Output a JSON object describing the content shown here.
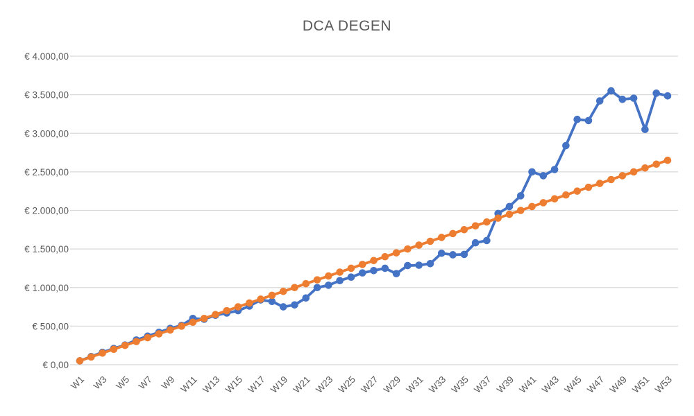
{
  "chart_data": {
    "type": "line",
    "title": "DCA DEGEN",
    "legend": "none",
    "grid": "horizontal",
    "ylim": [
      0,
      4000
    ],
    "y_ticks": [
      {
        "value": 0,
        "label": "€ 0,00"
      },
      {
        "value": 500,
        "label": "€ 500,00"
      },
      {
        "value": 1000,
        "label": "€ 1.000,00"
      },
      {
        "value": 1500,
        "label": "€ 1.500,00"
      },
      {
        "value": 2000,
        "label": "€ 2.000,00"
      },
      {
        "value": 2500,
        "label": "€ 2.500,00"
      },
      {
        "value": 3000,
        "label": "€ 3.000,00"
      },
      {
        "value": 3500,
        "label": "€ 3.500,00"
      },
      {
        "value": 4000,
        "label": "€ 4.000,00"
      }
    ],
    "categories": [
      "W1",
      "W2",
      "W3",
      "W4",
      "W5",
      "W6",
      "W7",
      "W8",
      "W9",
      "W10",
      "W11",
      "W12",
      "W13",
      "W14",
      "W15",
      "W16",
      "W17",
      "W18",
      "W19",
      "W20",
      "W21",
      "W22",
      "W23",
      "W24",
      "W25",
      "W26",
      "W27",
      "W28",
      "W29",
      "W30",
      "W31",
      "W32",
      "W33",
      "W34",
      "W35",
      "W36",
      "W37",
      "W38",
      "W39",
      "W40",
      "W41",
      "W42",
      "W43",
      "W44",
      "W45",
      "W46",
      "W47",
      "W48",
      "W49",
      "W50",
      "W51",
      "W52",
      "W53"
    ],
    "x_tick_labels_shown": [
      "W1",
      "W3",
      "W5",
      "W7",
      "W9",
      "W11",
      "W13",
      "W15",
      "W17",
      "W19",
      "W21",
      "W23",
      "W25",
      "W27",
      "W29",
      "W31",
      "W33",
      "W35",
      "W37",
      "W39",
      "W41",
      "W43",
      "W45",
      "W47",
      "W49",
      "W51",
      "W53"
    ],
    "series": [
      {
        "id": "portfolio-value-blue",
        "color": "#4472C4",
        "values": [
          50,
          105,
          160,
          210,
          255,
          320,
          370,
          420,
          470,
          510,
          600,
          590,
          640,
          670,
          700,
          760,
          840,
          820,
          750,
          775,
          865,
          1000,
          1030,
          1090,
          1135,
          1190,
          1220,
          1250,
          1180,
          1285,
          1290,
          1310,
          1445,
          1425,
          1430,
          1580,
          1610,
          1960,
          2050,
          2190,
          2500,
          2450,
          2530,
          2840,
          3180,
          3165,
          3420,
          3550,
          3440,
          3455,
          3050,
          3520,
          3485
        ]
      },
      {
        "id": "invested-orange",
        "color": "#ED7D31",
        "values": [
          50,
          100,
          150,
          200,
          250,
          300,
          350,
          400,
          450,
          500,
          550,
          600,
          650,
          700,
          750,
          800,
          850,
          900,
          950,
          1000,
          1050,
          1100,
          1150,
          1200,
          1250,
          1300,
          1350,
          1400,
          1450,
          1500,
          1550,
          1600,
          1650,
          1700,
          1750,
          1800,
          1850,
          1900,
          1950,
          2000,
          2050,
          2100,
          2150,
          2200,
          2250,
          2300,
          2350,
          2400,
          2450,
          2500,
          2550,
          2600,
          2650
        ]
      }
    ],
    "colors": {
      "gridline": "#D9D9D9",
      "axis_line": "#D9D9D9",
      "tick_label": "#595959",
      "title": "#595959",
      "background": "#FFFFFF"
    }
  }
}
